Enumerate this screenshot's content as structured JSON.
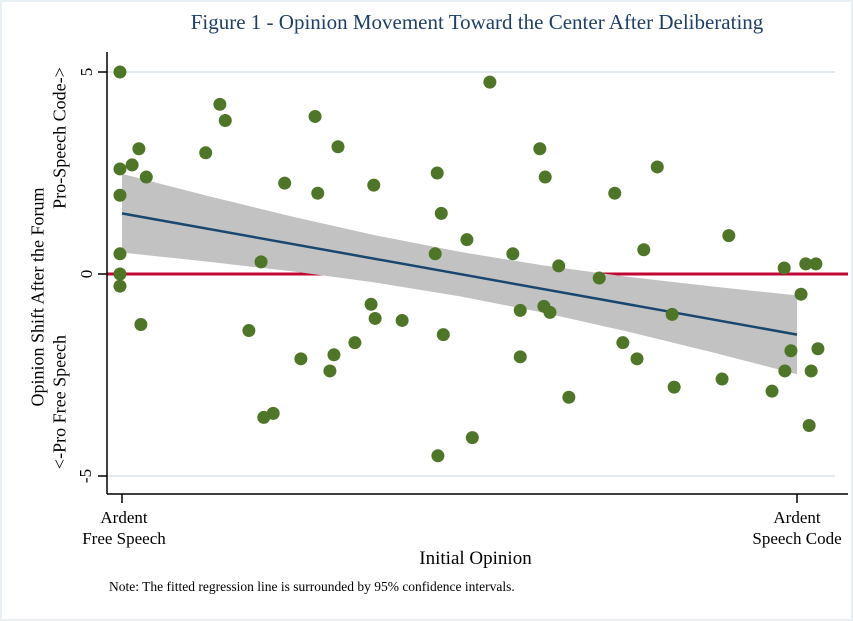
{
  "figure": {
    "title": "Figure 1 - Opinion Movement Toward the Center After Deliberating",
    "note": "Note: The fitted regression line is surrounded by 95% confidence intervals."
  },
  "axes": {
    "y": {
      "label_line1": "Opinion Shift After the Forum",
      "label_top_end": "Pro-Speech Code->",
      "label_bottom_end": "<-Pro Free Speech",
      "tick_labels": [
        "5",
        "0",
        "-5"
      ]
    },
    "x": {
      "label": "Initial Opinion",
      "tick_left": {
        "line1": "Ardent",
        "line2": "Free Speech"
      },
      "tick_right": {
        "line1": "Ardent",
        "line2": "Speech Code"
      }
    }
  },
  "colors": {
    "title": "#1f3f67",
    "scatter": "#4f7628",
    "fit_line": "#1a476f",
    "reference_line": "#c10534",
    "ci_band": "#c2c2c2",
    "gridline": "#e2eaf0",
    "axis": "#000000",
    "border": "#e9f0f4",
    "background": "#ffffff"
  },
  "chart_data": {
    "type": "scatter",
    "title": "Figure 1 - Opinion Movement Toward the Center After Deliberating",
    "xlabel": "Initial Opinion",
    "ylabel": "Opinion Shift After the Forum",
    "x_axis_units": "normalized: 0 = 'Ardent Free Speech' tick, 1 = 'Ardent Speech Code' tick (no numeric labels shown)",
    "x_anchor_labels": [
      "Ardent Free Speech",
      "Ardent Speech Code"
    ],
    "x_tick_positions": [
      0,
      1
    ],
    "xlim": [
      -0.022,
      1.075
    ],
    "ylim": [
      -5.5,
      5.5
    ],
    "y_ticks": [
      5,
      0,
      -5
    ],
    "grid_y_values": [
      5,
      -5
    ],
    "reference_line_y": 0,
    "fit_line": {
      "x": [
        0,
        1
      ],
      "y": [
        1.5,
        -1.5
      ]
    },
    "ci_band": {
      "label": "95% confidence interval",
      "x": [
        0,
        0.125,
        0.25,
        0.375,
        0.5,
        0.625,
        0.75,
        0.875,
        1
      ],
      "top": [
        2.48,
        1.94,
        1.43,
        0.96,
        0.55,
        0.21,
        -0.07,
        -0.31,
        -0.53
      ],
      "bottom": [
        0.53,
        0.31,
        0.07,
        -0.21,
        -0.55,
        -0.96,
        -1.43,
        -1.94,
        -2.48
      ]
    },
    "points": [
      [
        -0.003,
        5.0
      ],
      [
        0.145,
        4.2
      ],
      [
        0.153,
        3.8
      ],
      [
        0.025,
        3.1
      ],
      [
        0.124,
        3.0
      ],
      [
        0.015,
        2.7
      ],
      [
        -0.003,
        2.6
      ],
      [
        0.036,
        2.4
      ],
      [
        0.241,
        2.25
      ],
      [
        -0.003,
        1.95
      ],
      [
        -0.003,
        0.5
      ],
      [
        0.206,
        0.3
      ],
      [
        -0.003,
        0.0
      ],
      [
        -0.003,
        -0.3
      ],
      [
        0.286,
        3.9
      ],
      [
        0.32,
        3.15
      ],
      [
        0.467,
        2.5
      ],
      [
        0.373,
        2.2
      ],
      [
        0.29,
        2.0
      ],
      [
        0.473,
        1.5
      ],
      [
        0.511,
        0.85
      ],
      [
        0.464,
        0.5
      ],
      [
        0.545,
        4.75
      ],
      [
        0.619,
        3.1
      ],
      [
        0.793,
        2.65
      ],
      [
        0.627,
        2.4
      ],
      [
        0.73,
        2.0
      ],
      [
        0.773,
        0.6
      ],
      [
        0.579,
        0.5
      ],
      [
        0.647,
        0.2
      ],
      [
        0.707,
        -0.1
      ],
      [
        0.899,
        0.95
      ],
      [
        0.981,
        0.15
      ],
      [
        1.013,
        0.25
      ],
      [
        1.028,
        0.25
      ],
      [
        0.028,
        -1.25
      ],
      [
        0.188,
        -1.4
      ],
      [
        0.21,
        -3.55
      ],
      [
        0.224,
        -3.45
      ],
      [
        0.369,
        -0.75
      ],
      [
        0.375,
        -1.1
      ],
      [
        0.415,
        -1.15
      ],
      [
        0.476,
        -1.5
      ],
      [
        0.345,
        -1.7
      ],
      [
        0.314,
        -2.0
      ],
      [
        0.265,
        -2.1
      ],
      [
        0.308,
        -2.4
      ],
      [
        0.519,
        -4.05
      ],
      [
        0.468,
        -4.5
      ],
      [
        0.59,
        -0.9
      ],
      [
        0.625,
        -0.8
      ],
      [
        0.634,
        -0.95
      ],
      [
        0.742,
        -1.7
      ],
      [
        0.59,
        -2.05
      ],
      [
        0.763,
        -2.1
      ],
      [
        0.662,
        -3.05
      ],
      [
        0.815,
        -1.0
      ],
      [
        1.006,
        -0.5
      ],
      [
        0.991,
        -1.9
      ],
      [
        1.031,
        -1.85
      ],
      [
        0.982,
        -2.4
      ],
      [
        1.021,
        -2.4
      ],
      [
        0.818,
        -2.8
      ],
      [
        0.889,
        -2.6
      ],
      [
        0.963,
        -2.9
      ],
      [
        1.018,
        -3.75
      ]
    ]
  }
}
